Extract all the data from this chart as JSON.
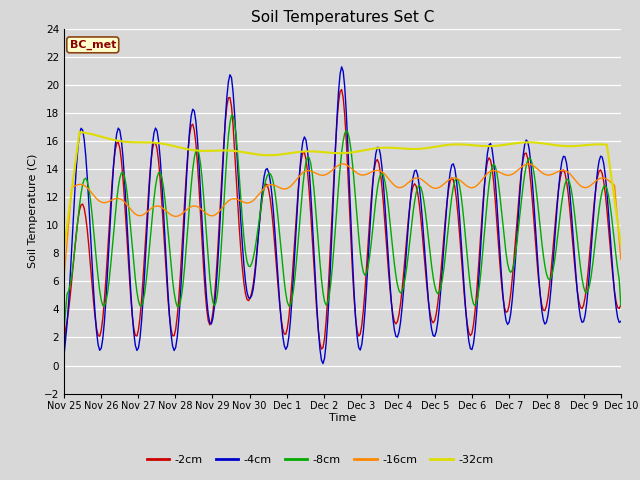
{
  "title": "Soil Temperatures Set C",
  "xlabel": "Time",
  "ylabel": "Soil Temperature (C)",
  "ylim": [
    -2,
    24
  ],
  "yticks": [
    -2,
    0,
    2,
    4,
    6,
    8,
    10,
    12,
    14,
    16,
    18,
    20,
    22,
    24
  ],
  "annotation": "BC_met",
  "bg_color": "#d8d8d8",
  "series": {
    "-2cm": {
      "color": "#cc0000",
      "lw": 1.0
    },
    "-4cm": {
      "color": "#0000cc",
      "lw": 1.0
    },
    "-8cm": {
      "color": "#00aa00",
      "lw": 1.0
    },
    "-16cm": {
      "color": "#ff8800",
      "lw": 1.0
    },
    "-32cm": {
      "color": "#dddd00",
      "lw": 1.5
    }
  },
  "legend_order": [
    "-2cm",
    "-4cm",
    "-8cm",
    "-16cm",
    "-32cm"
  ],
  "x_tick_labels": [
    "Nov 25",
    "Nov 26",
    "Nov 27",
    "Nov 28",
    "Nov 29",
    "Nov 30",
    "Dec 1",
    "Dec 2",
    "Dec 3",
    "Dec 4",
    "Dec 5",
    "Dec 6",
    "Dec 7",
    "Dec 8",
    "Dec 9",
    "Dec 10"
  ]
}
